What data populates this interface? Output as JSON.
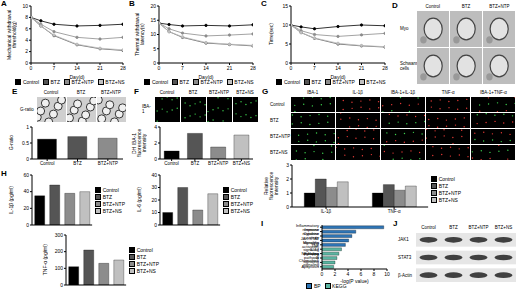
{
  "chart_data": [
    {
      "panel": "A",
      "type": "line",
      "x_label": "Day(d)",
      "y_label": "Mechanical withdrawal threshold(g)",
      "x": [
        0,
        3,
        7,
        14,
        21,
        28
      ],
      "xlim": [
        0,
        28
      ],
      "xticks": [
        0,
        7,
        14,
        21,
        28
      ],
      "ylim": [
        0,
        10
      ],
      "yticks": [
        0,
        2,
        4,
        6,
        8,
        10
      ],
      "legend": "bottom",
      "series": [
        {
          "name": "Control",
          "color": "#000000",
          "values": [
            8,
            7.4,
            6.8,
            6.5,
            6.6,
            6.8
          ]
        },
        {
          "name": "BTZ",
          "color": "#555555",
          "values": [
            8,
            6.5,
            4.8,
            3.2,
            2.5,
            2.2
          ]
        },
        {
          "name": "BTZ+NTP",
          "color": "#8c8c8c",
          "values": [
            8,
            6.8,
            5.5,
            4.5,
            4.2,
            4.5
          ]
        },
        {
          "name": "BTZ+NS",
          "color": "#c0c0c0",
          "values": [
            8,
            6.5,
            4.9,
            3.3,
            2.6,
            2.3
          ]
        }
      ]
    },
    {
      "panel": "B",
      "type": "line",
      "x_label": "Day(d)",
      "y_label": "Thermal withdrawal latency(s)",
      "x": [
        0,
        3,
        7,
        14,
        21,
        28
      ],
      "xlim": [
        0,
        28
      ],
      "xticks": [
        0,
        7,
        14,
        21,
        28
      ],
      "ylim": [
        0,
        20
      ],
      "yticks": [
        0,
        5,
        10,
        15,
        20
      ],
      "legend": "bottom",
      "series": [
        {
          "name": "Control",
          "color": "#000000",
          "values": [
            14,
            13.5,
            13,
            13.2,
            13,
            13.4
          ]
        },
        {
          "name": "BTZ",
          "color": "#555555",
          "values": [
            14,
            11,
            9,
            7,
            6.5,
            6
          ]
        },
        {
          "name": "BTZ+NTP",
          "color": "#8c8c8c",
          "values": [
            14,
            12,
            10.5,
            9.5,
            9.8,
            10.2
          ]
        },
        {
          "name": "BTZ+NS",
          "color": "#c0c0c0",
          "values": [
            14,
            11,
            9.2,
            7.2,
            6.6,
            6.2
          ]
        }
      ]
    },
    {
      "panel": "C",
      "type": "line",
      "x_label": "Day(d)",
      "y_label": "Time(sec)",
      "x": [
        0,
        3,
        7,
        14,
        21,
        28
      ],
      "xlim": [
        0,
        28
      ],
      "xticks": [
        0,
        7,
        14,
        21,
        28
      ],
      "ylim": [
        0,
        15
      ],
      "yticks": [
        0,
        5,
        10,
        15
      ],
      "legend": "bottom",
      "series": [
        {
          "name": "Control",
          "color": "#000000",
          "values": [
            10,
            9.5,
            9,
            9.6,
            10,
            9.8
          ]
        },
        {
          "name": "BTZ",
          "color": "#555555",
          "values": [
            10,
            8,
            6.5,
            5,
            4.5,
            4.2
          ]
        },
        {
          "name": "BTZ+NTP",
          "color": "#8c8c8c",
          "values": [
            10,
            8.5,
            7.5,
            7,
            7.4,
            7.8
          ]
        },
        {
          "name": "BTZ+NS",
          "color": "#c0c0c0",
          "values": [
            10,
            8,
            6.6,
            5.2,
            4.6,
            4.3
          ]
        }
      ]
    },
    {
      "type": "bar",
      "y_label": "G-ratio",
      "categories": [
        "Control",
        "BTZ",
        "BTZ+NTP"
      ],
      "values": [
        0.62,
        0.7,
        0.65
      ],
      "colors": [
        "#000000",
        "#555555",
        "#8c8c8c"
      ],
      "ylim": [
        0,
        1
      ],
      "yticks": [
        0,
        0.5,
        1
      ]
    },
    {
      "type": "bar",
      "y_label": "DH IBA-1 fluorescence intensity",
      "categories": [
        "Control",
        "BTZ",
        "BTZ+NTP",
        "BTZ+NS"
      ],
      "values": [
        1,
        3.2,
        1.5,
        3
      ],
      "colors": [
        "#000000",
        "#555555",
        "#8c8c8c",
        "#c0c0c0"
      ],
      "ylim": [
        0,
        4
      ],
      "yticks": [
        0,
        1,
        2,
        3,
        4
      ]
    },
    {
      "type": "bar",
      "y_label": "Relative fluorescence intensity",
      "categories": [
        "IL-1β",
        "TNF-α"
      ],
      "legend": "right",
      "ylim": [
        0,
        3
      ],
      "yticks": [
        0,
        1,
        2,
        3
      ],
      "series": [
        {
          "name": "Control",
          "color": "#000000",
          "values": [
            1,
            1
          ]
        },
        {
          "name": "BTZ",
          "color": "#555555",
          "values": [
            2,
            1.6
          ]
        },
        {
          "name": "BTZ+NTP",
          "color": "#8c8c8c",
          "values": [
            1.4,
            1.2
          ]
        },
        {
          "name": "BTZ+NS",
          "color": "#c0c0c0",
          "values": [
            1.8,
            1.5
          ]
        }
      ]
    },
    {
      "panel": "H",
      "type": "bar",
      "y_label": "IL-1β (pg/ml)",
      "categories": [
        "Control",
        "BTZ",
        "BTZ+NTP",
        "BTZ+NS"
      ],
      "values": [
        35,
        48,
        38,
        40
      ],
      "colors": [
        "#000000",
        "#555555",
        "#8c8c8c",
        "#c0c0c0"
      ],
      "ylim": [
        0,
        60
      ],
      "yticks": [
        0,
        20,
        40,
        60
      ],
      "legend": "right",
      "tick_labels": "y"
    },
    {
      "type": "bar",
      "y_label": "IL-6 (pg/ml)",
      "categories": [
        "Control",
        "BTZ",
        "BTZ+NTP",
        "BTZ+NS"
      ],
      "values": [
        10,
        30,
        12,
        25
      ],
      "colors": [
        "#000000",
        "#555555",
        "#8c8c8c",
        "#c0c0c0"
      ],
      "ylim": [
        0,
        40
      ],
      "yticks": [
        0,
        10,
        20,
        30,
        40
      ],
      "legend": "right",
      "tick_labels": "y"
    },
    {
      "type": "bar",
      "y_label": "TNF-α (pg/ml)",
      "categories": [
        "Control",
        "BTZ",
        "BTZ+NTP",
        "BTZ+NS"
      ],
      "values": [
        110,
        210,
        130,
        150
      ],
      "colors": [
        "#000000",
        "#555555",
        "#8c8c8c",
        "#c0c0c0"
      ],
      "ylim": [
        0,
        300
      ],
      "yticks": [
        0,
        100,
        200,
        300
      ],
      "legend": "right",
      "tick_labels": "y"
    },
    {
      "panel": "I",
      "type": "bar",
      "orientation": "horizontal",
      "stacked": true,
      "x_label": "-log(P value)",
      "categories": [
        "Inflammatory response",
        "Immune response",
        "Cytokine activity",
        "JAK-STAT signaling",
        "Microglia activation",
        "TNF signaling pathway",
        "IL-17 signaling pathway",
        "NF-kappa B signaling",
        "Chemokine signaling",
        "Apoptosis"
      ],
      "xlim": [
        0,
        10
      ],
      "xticks": [
        0,
        2,
        4,
        6,
        8,
        10
      ],
      "legend": "bottom",
      "series": [
        {
          "name": "BP",
          "color": "#2e75b6",
          "values": [
            9.5,
            5.2,
            4.6,
            4.1,
            3.6,
            null,
            null,
            null,
            null,
            null
          ]
        },
        {
          "name": "KEGG",
          "color": "#5bb5a2",
          "values": [
            null,
            null,
            null,
            null,
            null,
            3,
            2.6,
            2.3,
            2,
            1.8
          ]
        }
      ]
    }
  ],
  "image_panels": [
    {
      "panel": "D",
      "columns": [
        "Control",
        "BTZ",
        "BTZ+NTP"
      ],
      "rows": [
        "Myo",
        "Schwann cells"
      ]
    },
    {
      "panel": "E",
      "columns": [
        "Control",
        "BTZ",
        "BTZ+NTP"
      ],
      "rows": [
        "G-ratio"
      ]
    },
    {
      "panel": "F",
      "columns": [
        "Control",
        "BTZ",
        "BTZ+NTP",
        "BTZ+NS"
      ],
      "rows": [
        "IBA-1"
      ]
    },
    {
      "panel": "G",
      "columns": [
        "IBA-1",
        "IL-1β",
        "IBA-1+IL-1β",
        "TNF-α",
        "IBA-1+TNF-α"
      ],
      "rows": [
        "Control",
        "BTZ",
        "BTZ+NTP",
        "BTZ+NS"
      ]
    }
  ],
  "blot": {
    "panel": "J",
    "columns": [
      "Control",
      "BTZ",
      "BTZ+NTP",
      "BTZ+NS"
    ],
    "rows": [
      "JAK1",
      "STAT3",
      "β-Actin"
    ]
  }
}
